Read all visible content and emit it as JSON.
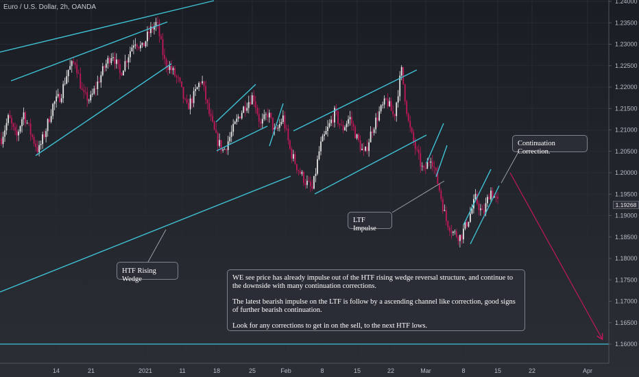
{
  "header": {
    "title": "Euro / U.S. Dollar, 2h, OANDA"
  },
  "colors": {
    "bull": "#e6e6e6",
    "bear": "#c2185b",
    "trendline": "#3fc3d7",
    "projection": "#c2185b",
    "grid": "#262a32"
  },
  "chart_data": {
    "type": "candlestick",
    "symbol": "EURUSD",
    "timeframe": "2h",
    "x_ticks": [
      "14",
      "21",
      "2021",
      "11",
      "18",
      "25",
      "Feb",
      "8",
      "15",
      "22",
      "Mar",
      "8",
      "15",
      "22",
      "Apr"
    ],
    "y_ticks": [
      "1.24000",
      "1.23500",
      "1.23000",
      "1.22500",
      "1.22000",
      "1.21500",
      "1.21000",
      "1.20500",
      "1.20000",
      "1.19500",
      "1.19000",
      "1.18500",
      "1.18000",
      "1.17500",
      "1.17000",
      "1.16500",
      "1.16000"
    ],
    "ylim": [
      1.1585,
      1.2405
    ],
    "last_price": "1.19268",
    "price_path": [
      1.208,
      1.213,
      1.208,
      1.214,
      1.209,
      1.205,
      1.21,
      1.216,
      1.218,
      1.224,
      1.226,
      1.218,
      1.217,
      1.221,
      1.225,
      1.228,
      1.223,
      1.227,
      1.231,
      1.229,
      1.233,
      1.235,
      1.226,
      1.224,
      1.221,
      1.215,
      1.218,
      1.222,
      1.214,
      1.208,
      1.205,
      1.209,
      1.213,
      1.216,
      1.218,
      1.211,
      1.214,
      1.209,
      1.213,
      1.205,
      1.201,
      1.198,
      1.196,
      1.206,
      1.21,
      1.214,
      1.21,
      1.213,
      1.208,
      1.204,
      1.21,
      1.214,
      1.217,
      1.213,
      1.224,
      1.211,
      1.205,
      1.2,
      1.204,
      1.197,
      1.189,
      1.186,
      1.185,
      1.189,
      1.194,
      1.19,
      1.196,
      1.193
    ],
    "horizontal_level": 1.16,
    "annotations": [
      {
        "id": "continuation",
        "label": "Continuation Correction."
      },
      {
        "id": "ltf",
        "label": "LTF Impulse"
      },
      {
        "id": "htf",
        "label": "HTF Rising Wedge"
      }
    ],
    "commentary": [
      "WE see price has already impulse out of the HTF rising wedge reversal structure, and continue to the downside with many continuation corrections.",
      "The latest bearish impulse on the LTF is follow by a ascending channel like correction, good signs of further bearish continuation.",
      "Look for any corrections to get in on the sell, to the next HTF lows."
    ]
  }
}
